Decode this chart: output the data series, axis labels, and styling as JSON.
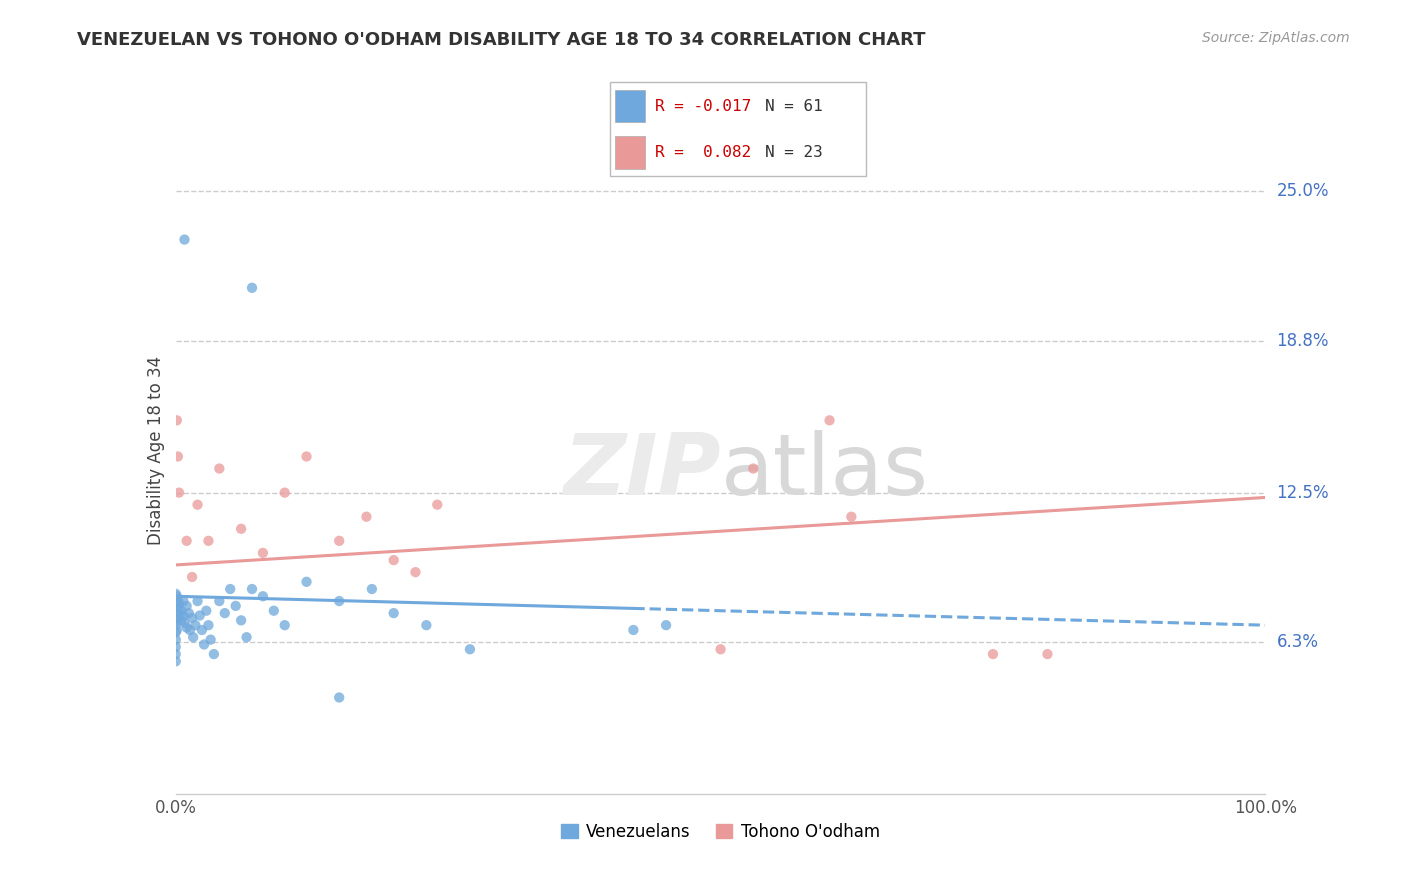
{
  "title": "VENEZUELAN VS TOHONO O'ODHAM DISABILITY AGE 18 TO 34 CORRELATION CHART",
  "source": "Source: ZipAtlas.com",
  "ylabel": "Disability Age 18 to 34",
  "ytick_labels": [
    "6.3%",
    "12.5%",
    "18.8%",
    "25.0%"
  ],
  "ytick_values": [
    0.063,
    0.125,
    0.188,
    0.25
  ],
  "xlim": [
    0.0,
    1.0
  ],
  "ylim": [
    0.0,
    0.28
  ],
  "venezuelan_color": "#6fa8dc",
  "tohono_color": "#ea9999",
  "venezuelan_R": -0.017,
  "venezuelan_N": 61,
  "tohono_R": 0.082,
  "tohono_N": 23,
  "watermark": "ZIPatlas",
  "legend_R1": "R = -0.017",
  "legend_N1": "N = 61",
  "legend_R2": "R =  0.082",
  "legend_N2": "N = 23",
  "ven_line_solid_end": 0.42,
  "ven_intercept": 0.082,
  "ven_slope": -0.012,
  "toh_intercept": 0.095,
  "toh_slope": 0.028
}
